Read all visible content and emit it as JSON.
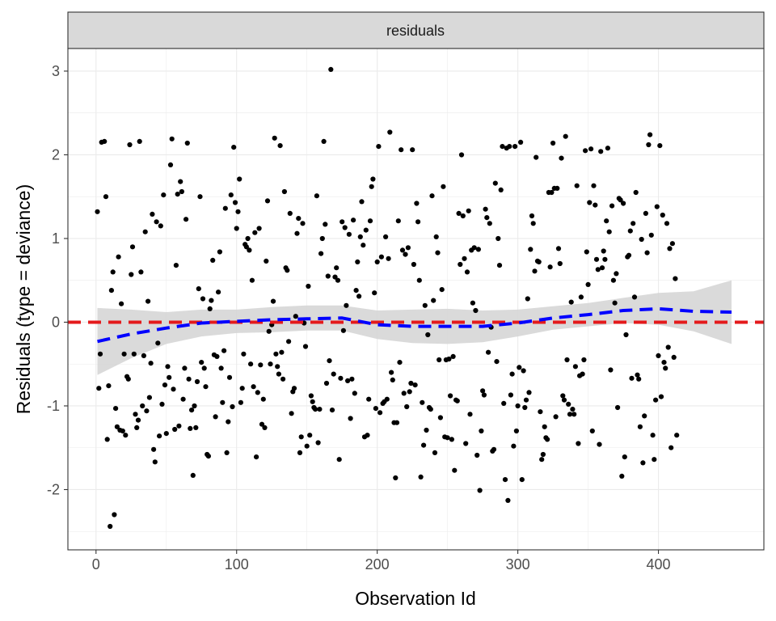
{
  "chart_data": {
    "type": "scatter",
    "facet_label": "residuals",
    "xlabel": "Observation Id",
    "ylabel": "Residuals (type = deviance)",
    "xlim": [
      -20,
      475
    ],
    "ylim": [
      -2.72,
      3.27
    ],
    "x_ticks": [
      0,
      100,
      200,
      300,
      400
    ],
    "y_ticks": [
      -2,
      -1,
      0,
      1,
      2,
      3
    ],
    "grid": true,
    "colors": {
      "points": "#000000",
      "smooth_line": "#0000ff",
      "reference_line": "#e41a1c",
      "ribbon": "#d3d3d3",
      "strip_background": "#d9d9d9",
      "panel_border": "#333333",
      "grid": "#ebebeb"
    },
    "reference_line": {
      "y": 0,
      "style": "dashed"
    },
    "smooth": {
      "style": "dashed",
      "x": [
        1,
        25,
        50,
        75,
        100,
        125,
        150,
        175,
        200,
        225,
        250,
        275,
        300,
        325,
        350,
        375,
        400,
        425,
        452
      ],
      "y": [
        -0.23,
        -0.14,
        -0.07,
        -0.01,
        0.01,
        0.03,
        0.04,
        0.05,
        -0.03,
        -0.05,
        -0.05,
        -0.05,
        -0.01,
        0.05,
        0.09,
        0.14,
        0.16,
        0.13,
        0.12
      ],
      "lower": [
        -0.63,
        -0.43,
        -0.26,
        -0.17,
        -0.13,
        -0.12,
        -0.1,
        -0.1,
        -0.2,
        -0.25,
        -0.26,
        -0.24,
        -0.17,
        -0.09,
        -0.05,
        -0.01,
        -0.03,
        -0.11,
        -0.26
      ],
      "upper": [
        0.17,
        0.15,
        0.12,
        0.15,
        0.15,
        0.18,
        0.2,
        0.2,
        0.14,
        0.15,
        0.16,
        0.14,
        0.15,
        0.19,
        0.23,
        0.29,
        0.35,
        0.37,
        0.5
      ]
    },
    "points": [
      [
        1,
        1.32
      ],
      [
        2,
        -0.79
      ],
      [
        3,
        -0.38
      ],
      [
        4,
        2.15
      ],
      [
        6,
        2.16
      ],
      [
        7,
        1.5
      ],
      [
        8,
        -1.4
      ],
      [
        9,
        -0.76
      ],
      [
        10,
        -2.44
      ],
      [
        11,
        0.38
      ],
      [
        12,
        0.6
      ],
      [
        13,
        -2.3
      ],
      [
        14,
        -1.03
      ],
      [
        15,
        -1.25
      ],
      [
        16,
        0.78
      ],
      [
        17,
        -1.29
      ],
      [
        18,
        0.22
      ],
      [
        19,
        -1.3
      ],
      [
        20,
        -0.38
      ],
      [
        21,
        -1.35
      ],
      [
        22,
        -0.65
      ],
      [
        23,
        -0.68
      ],
      [
        24,
        2.12
      ],
      [
        25,
        0.57
      ],
      [
        26,
        0.9
      ],
      [
        27,
        -0.38
      ],
      [
        28,
        -1.1
      ],
      [
        29,
        -1.26
      ],
      [
        30,
        -1.17
      ],
      [
        31,
        2.16
      ],
      [
        32,
        0.6
      ],
      [
        33,
        -1.0
      ],
      [
        34,
        -0.4
      ],
      [
        35,
        1.08
      ],
      [
        36,
        -1.06
      ],
      [
        37,
        0.25
      ],
      [
        38,
        -0.9
      ],
      [
        39,
        -0.49
      ],
      [
        40,
        1.29
      ],
      [
        41,
        -1.52
      ],
      [
        42,
        -1.67
      ],
      [
        43,
        1.2
      ],
      [
        44,
        -0.25
      ],
      [
        45,
        -1.36
      ],
      [
        46,
        1.15
      ],
      [
        47,
        -0.98
      ],
      [
        48,
        1.52
      ],
      [
        49,
        -0.75
      ],
      [
        50,
        -1.33
      ],
      [
        51,
        -0.53
      ],
      [
        52,
        -0.66
      ],
      [
        53,
        1.88
      ],
      [
        54,
        2.19
      ],
      [
        55,
        -0.8
      ],
      [
        56,
        -1.28
      ],
      [
        57,
        0.68
      ],
      [
        58,
        1.53
      ],
      [
        59,
        -1.24
      ],
      [
        60,
        1.68
      ],
      [
        61,
        1.56
      ],
      [
        62,
        -0.92
      ],
      [
        63,
        -0.55
      ],
      [
        64,
        1.23
      ],
      [
        65,
        2.14
      ],
      [
        66,
        -0.68
      ],
      [
        67,
        -1.27
      ],
      [
        68,
        -1.05
      ],
      [
        69,
        -1.83
      ],
      [
        70,
        -1.0
      ],
      [
        71,
        -1.26
      ],
      [
        72,
        -0.71
      ],
      [
        73,
        0.4
      ],
      [
        74,
        1.5
      ],
      [
        75,
        -0.48
      ],
      [
        76,
        0.28
      ],
      [
        77,
        -0.55
      ],
      [
        78,
        -0.77
      ],
      [
        79,
        -1.58
      ],
      [
        80,
        -1.6
      ],
      [
        81,
        0.16
      ],
      [
        82,
        0.26
      ],
      [
        83,
        0.74
      ],
      [
        84,
        -0.39
      ],
      [
        85,
        -1.13
      ],
      [
        86,
        -0.41
      ],
      [
        87,
        0.36
      ],
      [
        88,
        0.84
      ],
      [
        89,
        -0.55
      ],
      [
        90,
        -0.96
      ],
      [
        91,
        -0.34
      ],
      [
        92,
        1.36
      ],
      [
        93,
        -1.56
      ],
      [
        94,
        -1.19
      ],
      [
        95,
        -0.66
      ],
      [
        96,
        1.52
      ],
      [
        97,
        -1.01
      ],
      [
        98,
        2.09
      ],
      [
        99,
        1.43
      ],
      [
        100,
        1.12
      ],
      [
        101,
        1.32
      ],
      [
        102,
        1.71
      ],
      [
        103,
        -0.96
      ],
      [
        104,
        -0.79
      ],
      [
        105,
        -0.38
      ],
      [
        106,
        0.93
      ],
      [
        107,
        0.9
      ],
      [
        108,
        1.0
      ],
      [
        109,
        0.86
      ],
      [
        110,
        -0.5
      ],
      [
        111,
        0.5
      ],
      [
        112,
        -0.77
      ],
      [
        113,
        1.07
      ],
      [
        114,
        -1.61
      ],
      [
        115,
        -0.84
      ],
      [
        116,
        1.12
      ],
      [
        117,
        -0.51
      ],
      [
        118,
        -1.22
      ],
      [
        119,
        -0.92
      ],
      [
        120,
        -1.26
      ],
      [
        121,
        0.73
      ],
      [
        122,
        1.45
      ],
      [
        123,
        -0.11
      ],
      [
        124,
        -0.5
      ],
      [
        125,
        -0.03
      ],
      [
        126,
        0.25
      ],
      [
        127,
        2.2
      ],
      [
        128,
        -0.38
      ],
      [
        129,
        -0.53
      ],
      [
        130,
        -0.62
      ],
      [
        131,
        2.11
      ],
      [
        132,
        -0.36
      ],
      [
        133,
        -0.68
      ],
      [
        134,
        1.56
      ],
      [
        135,
        0.65
      ],
      [
        136,
        0.62
      ],
      [
        137,
        -0.23
      ],
      [
        138,
        1.3
      ],
      [
        139,
        -1.09
      ],
      [
        140,
        -0.83
      ],
      [
        141,
        -0.79
      ],
      [
        142,
        0.07
      ],
      [
        143,
        1.06
      ],
      [
        144,
        1.24
      ],
      [
        145,
        -1.56
      ],
      [
        146,
        -1.37
      ],
      [
        147,
        1.18
      ],
      [
        148,
        -0.01
      ],
      [
        149,
        -0.29
      ],
      [
        150,
        -1.48
      ],
      [
        151,
        0.43
      ],
      [
        152,
        -1.35
      ],
      [
        153,
        -0.88
      ],
      [
        154,
        -0.95
      ],
      [
        155,
        -1.02
      ],
      [
        156,
        -1.04
      ],
      [
        157,
        1.51
      ],
      [
        158,
        -1.44
      ],
      [
        159,
        -1.04
      ],
      [
        160,
        0.82
      ],
      [
        161,
        1.0
      ],
      [
        162,
        2.16
      ],
      [
        163,
        1.17
      ],
      [
        164,
        -0.73
      ],
      [
        165,
        0.55
      ],
      [
        166,
        -0.46
      ],
      [
        167,
        3.02
      ],
      [
        168,
        -1.05
      ],
      [
        169,
        -0.62
      ],
      [
        170,
        0.54
      ],
      [
        171,
        0.65
      ],
      [
        172,
        0.5
      ],
      [
        173,
        -1.64
      ],
      [
        174,
        -0.67
      ],
      [
        175,
        1.2
      ],
      [
        176,
        -0.1
      ],
      [
        177,
        1.13
      ],
      [
        178,
        0.2
      ],
      [
        179,
        -0.7
      ],
      [
        180,
        1.05
      ],
      [
        181,
        -1.15
      ],
      [
        182,
        -0.68
      ],
      [
        183,
        1.22
      ],
      [
        184,
        -0.85
      ],
      [
        185,
        0.38
      ],
      [
        186,
        0.72
      ],
      [
        187,
        0.31
      ],
      [
        188,
        1.02
      ],
      [
        189,
        1.44
      ],
      [
        190,
        0.92
      ],
      [
        191,
        -1.37
      ],
      [
        192,
        1.1
      ],
      [
        193,
        -1.35
      ],
      [
        194,
        -0.92
      ],
      [
        195,
        1.21
      ],
      [
        196,
        1.62
      ],
      [
        197,
        1.71
      ],
      [
        198,
        0.35
      ],
      [
        199,
        -1.03
      ],
      [
        200,
        0.72
      ],
      [
        201,
        2.1
      ],
      [
        202,
        -1.08
      ],
      [
        203,
        0.78
      ],
      [
        204,
        -0.97
      ],
      [
        205,
        -0.95
      ],
      [
        206,
        1.02
      ],
      [
        207,
        -0.92
      ],
      [
        208,
        0.76
      ],
      [
        209,
        2.27
      ],
      [
        210,
        -0.6
      ],
      [
        211,
        -0.69
      ],
      [
        212,
        -1.2
      ],
      [
        213,
        -1.86
      ],
      [
        214,
        -1.2
      ],
      [
        215,
        1.21
      ],
      [
        216,
        -0.48
      ],
      [
        217,
        2.06
      ],
      [
        218,
        0.86
      ],
      [
        219,
        -0.85
      ],
      [
        220,
        0.81
      ],
      [
        221,
        -1.01
      ],
      [
        222,
        0.89
      ],
      [
        223,
        -0.83
      ],
      [
        224,
        -0.73
      ],
      [
        225,
        2.06
      ],
      [
        226,
        0.69
      ],
      [
        227,
        -0.75
      ],
      [
        228,
        1.42
      ],
      [
        229,
        1.2
      ],
      [
        230,
        0.5
      ],
      [
        231,
        -1.85
      ],
      [
        232,
        -0.96
      ],
      [
        233,
        -1.47
      ],
      [
        234,
        0.2
      ],
      [
        235,
        -1.29
      ],
      [
        236,
        -0.15
      ],
      [
        237,
        -1.02
      ],
      [
        238,
        -1.04
      ],
      [
        239,
        1.51
      ],
      [
        240,
        0.26
      ],
      [
        241,
        -1.56
      ],
      [
        242,
        1.02
      ],
      [
        243,
        0.83
      ],
      [
        244,
        -0.45
      ],
      [
        245,
        -1.14
      ],
      [
        246,
        0.39
      ],
      [
        247,
        1.62
      ],
      [
        248,
        -1.37
      ],
      [
        249,
        -0.45
      ],
      [
        250,
        -1.38
      ],
      [
        251,
        -0.44
      ],
      [
        252,
        -0.88
      ],
      [
        253,
        -1.4
      ],
      [
        254,
        -0.41
      ],
      [
        255,
        -1.77
      ],
      [
        256,
        -0.93
      ],
      [
        257,
        -0.94
      ],
      [
        258,
        1.3
      ],
      [
        259,
        0.69
      ],
      [
        260,
        2.0
      ],
      [
        261,
        1.27
      ],
      [
        262,
        0.76
      ],
      [
        263,
        -1.45
      ],
      [
        264,
        0.6
      ],
      [
        265,
        1.33
      ],
      [
        266,
        -1.1
      ],
      [
        267,
        0.86
      ],
      [
        268,
        0.23
      ],
      [
        269,
        0.89
      ],
      [
        270,
        0.14
      ],
      [
        271,
        -1.59
      ],
      [
        272,
        0.87
      ],
      [
        273,
        -2.01
      ],
      [
        274,
        -1.3
      ],
      [
        275,
        -0.82
      ],
      [
        276,
        -0.87
      ],
      [
        277,
        1.35
      ],
      [
        278,
        1.25
      ],
      [
        279,
        -0.36
      ],
      [
        280,
        1.18
      ],
      [
        281,
        -0.06
      ],
      [
        282,
        -1.54
      ],
      [
        283,
        -1.52
      ],
      [
        284,
        1.66
      ],
      [
        285,
        -0.47
      ],
      [
        286,
        1.0
      ],
      [
        287,
        0.68
      ],
      [
        288,
        1.58
      ],
      [
        289,
        2.1
      ],
      [
        290,
        -0.97
      ],
      [
        291,
        -1.88
      ],
      [
        292,
        2.08
      ],
      [
        293,
        -2.13
      ],
      [
        294,
        2.1
      ],
      [
        295,
        -0.87
      ],
      [
        296,
        -0.62
      ],
      [
        297,
        -1.48
      ],
      [
        298,
        2.1
      ],
      [
        299,
        -1.3
      ],
      [
        300,
        -1.0
      ],
      [
        301,
        -0.54
      ],
      [
        302,
        2.15
      ],
      [
        303,
        -1.88
      ],
      [
        304,
        -0.58
      ],
      [
        305,
        -1.02
      ],
      [
        306,
        -0.93
      ],
      [
        307,
        0.28
      ],
      [
        308,
        -0.84
      ],
      [
        309,
        0.87
      ],
      [
        310,
        1.27
      ],
      [
        311,
        1.18
      ],
      [
        312,
        0.61
      ],
      [
        313,
        1.97
      ],
      [
        314,
        0.73
      ],
      [
        315,
        0.72
      ],
      [
        316,
        -1.07
      ],
      [
        317,
        -1.64
      ],
      [
        318,
        -1.58
      ],
      [
        319,
        -1.25
      ],
      [
        320,
        -1.38
      ],
      [
        321,
        -1.4
      ],
      [
        322,
        1.55
      ],
      [
        323,
        0.66
      ],
      [
        324,
        1.55
      ],
      [
        325,
        2.14
      ],
      [
        326,
        1.6
      ],
      [
        327,
        -1.13
      ],
      [
        328,
        1.6
      ],
      [
        329,
        0.88
      ],
      [
        330,
        0.7
      ],
      [
        331,
        1.96
      ],
      [
        332,
        -0.88
      ],
      [
        333,
        -0.93
      ],
      [
        334,
        2.22
      ],
      [
        335,
        -0.45
      ],
      [
        336,
        -0.98
      ],
      [
        337,
        -1.1
      ],
      [
        338,
        0.24
      ],
      [
        339,
        -1.04
      ],
      [
        340,
        -1.1
      ],
      [
        341,
        -0.53
      ],
      [
        342,
        1.63
      ],
      [
        343,
        -1.45
      ],
      [
        344,
        -0.64
      ],
      [
        345,
        0.3
      ],
      [
        346,
        -0.62
      ],
      [
        347,
        -0.45
      ],
      [
        348,
        2.05
      ],
      [
        349,
        0.84
      ],
      [
        350,
        0.45
      ],
      [
        351,
        1.43
      ],
      [
        352,
        2.07
      ],
      [
        353,
        -1.3
      ],
      [
        354,
        1.63
      ],
      [
        355,
        1.4
      ],
      [
        356,
        0.75
      ],
      [
        357,
        0.63
      ],
      [
        358,
        -1.46
      ],
      [
        359,
        2.04
      ],
      [
        360,
        0.65
      ],
      [
        361,
        0.85
      ],
      [
        362,
        0.75
      ],
      [
        363,
        1.21
      ],
      [
        364,
        2.08
      ],
      [
        365,
        1.08
      ],
      [
        366,
        -0.57
      ],
      [
        367,
        1.39
      ],
      [
        368,
        0.5
      ],
      [
        369,
        0.23
      ],
      [
        370,
        0.58
      ],
      [
        371,
        -1.02
      ],
      [
        372,
        1.48
      ],
      [
        373,
        1.46
      ],
      [
        374,
        -1.84
      ],
      [
        375,
        1.42
      ],
      [
        376,
        -1.61
      ],
      [
        377,
        -0.15
      ],
      [
        378,
        0.78
      ],
      [
        379,
        0.8
      ],
      [
        380,
        1.09
      ],
      [
        381,
        -0.67
      ],
      [
        382,
        1.18
      ],
      [
        383,
        0.3
      ],
      [
        384,
        1.55
      ],
      [
        385,
        -0.63
      ],
      [
        386,
        -0.68
      ],
      [
        387,
        -1.25
      ],
      [
        388,
        0.99
      ],
      [
        389,
        -1.68
      ],
      [
        390,
        -1.12
      ],
      [
        391,
        1.3
      ],
      [
        392,
        0.83
      ],
      [
        393,
        2.12
      ],
      [
        394,
        2.24
      ],
      [
        395,
        1.04
      ],
      [
        396,
        -1.35
      ],
      [
        397,
        -1.64
      ],
      [
        398,
        -0.93
      ],
      [
        399,
        1.38
      ],
      [
        400,
        -0.4
      ],
      [
        401,
        2.11
      ],
      [
        402,
        -0.89
      ],
      [
        403,
        1.28
      ],
      [
        404,
        -0.48
      ],
      [
        405,
        -0.55
      ],
      [
        406,
        1.18
      ],
      [
        407,
        -0.3
      ],
      [
        408,
        0.88
      ],
      [
        409,
        -1.5
      ],
      [
        410,
        0.94
      ],
      [
        411,
        -0.42
      ],
      [
        412,
        0.52
      ],
      [
        413,
        -1.35
      ]
    ]
  }
}
